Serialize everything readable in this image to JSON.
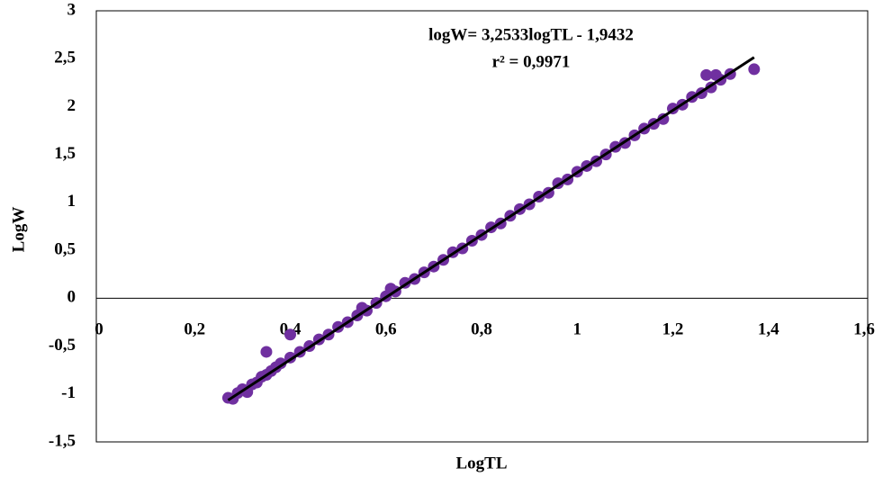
{
  "chart_data": {
    "type": "scatter",
    "annotations": [
      "logW= 3,2533logTL - 1,9432",
      "r² = 0,9971"
    ],
    "x_label": "LogTL",
    "y_label": "LogW",
    "color": "#7030a0",
    "x": [
      0.27,
      0.28,
      0.29,
      0.3,
      0.31,
      0.32,
      0.33,
      0.34,
      0.35,
      0.35,
      0.36,
      0.37,
      0.38,
      0.4,
      0.4,
      0.42,
      0.44,
      0.46,
      0.48,
      0.5,
      0.52,
      0.54,
      0.55,
      0.56,
      0.58,
      0.6,
      0.61,
      0.62,
      0.64,
      0.66,
      0.68,
      0.7,
      0.72,
      0.74,
      0.76,
      0.78,
      0.8,
      0.82,
      0.84,
      0.86,
      0.88,
      0.9,
      0.92,
      0.94,
      0.96,
      0.98,
      1.0,
      1.02,
      1.04,
      1.06,
      1.08,
      1.1,
      1.12,
      1.14,
      1.16,
      1.18,
      1.2,
      1.22,
      1.24,
      1.26,
      1.27,
      1.28,
      1.29,
      1.3,
      1.32,
      1.37
    ],
    "values": [
      -1.04,
      -1.05,
      -0.99,
      -0.95,
      -0.98,
      -0.9,
      -0.88,
      -0.82,
      -0.56,
      -0.8,
      -0.76,
      -0.72,
      -0.68,
      -0.38,
      -0.62,
      -0.56,
      -0.5,
      -0.43,
      -0.38,
      -0.3,
      -0.25,
      -0.18,
      -0.1,
      -0.13,
      -0.05,
      0.02,
      0.1,
      0.07,
      0.16,
      0.2,
      0.27,
      0.33,
      0.4,
      0.48,
      0.52,
      0.6,
      0.66,
      0.74,
      0.78,
      0.86,
      0.93,
      0.98,
      1.06,
      1.1,
      1.2,
      1.24,
      1.32,
      1.38,
      1.43,
      1.5,
      1.58,
      1.62,
      1.7,
      1.77,
      1.82,
      1.87,
      1.98,
      2.02,
      2.1,
      2.14,
      2.33,
      2.2,
      2.33,
      2.28,
      2.34,
      2.39
    ],
    "trendline": {
      "slope": 3.2533,
      "intercept": -1.9432,
      "x": [
        0.27,
        1.37
      ],
      "color": "#000000"
    },
    "xlim": [
      0,
      1.6
    ],
    "xticks": [
      0,
      {
        "value": 0.2,
        "label": "0,2"
      },
      {
        "value": 0.4,
        "label": "0,4"
      },
      {
        "value": 0.6,
        "label": "0,6"
      },
      {
        "value": 0.8,
        "label": "0,8"
      },
      1,
      {
        "value": 1.2,
        "label": "1,2"
      },
      {
        "value": 1.4,
        "label": "1,4"
      },
      {
        "value": 1.6,
        "label": "1,6"
      }
    ],
    "ylim": [
      -1.5,
      3
    ],
    "yticks": [
      {
        "value": -1.5,
        "label": "-1,5"
      },
      -1,
      {
        "value": -0.5,
        "label": "-0,5"
      },
      0,
      {
        "value": 0.5,
        "label": "0,5"
      },
      1,
      {
        "value": 1.5,
        "label": "1,5"
      },
      2,
      {
        "value": 2.5,
        "label": "2,5"
      },
      3
    ],
    "grid": false
  }
}
